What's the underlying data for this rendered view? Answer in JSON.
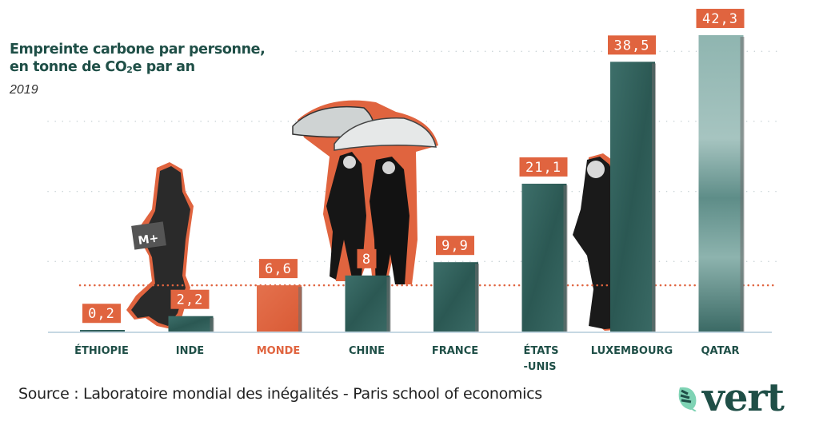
{
  "header": {
    "title_line1": "Empreinte carbone par personne,",
    "title_line2_pre": "en tonne de CO",
    "title_line2_sub": "2",
    "title_line2_post": "e par an",
    "year": "2019"
  },
  "chart_data": {
    "type": "bar",
    "title": "Empreinte carbone par personne, en tonne de CO2e par an",
    "subtitle": "2019",
    "xlabel": "",
    "ylabel": "",
    "ylim": [
      0,
      42.3
    ],
    "grid": true,
    "categories": [
      "ÉTHIOPIE",
      "INDE",
      "MONDE",
      "CHINE",
      "FRANCE",
      "ÉTATS-UNIS",
      "LUXEMBOURG",
      "QATAR"
    ],
    "category_lines": [
      [
        "ÉTHIOPIE"
      ],
      [
        "INDE"
      ],
      [
        "MONDE"
      ],
      [
        "CHINE"
      ],
      [
        "FRANCE"
      ],
      [
        "ÉTATS",
        "-UNIS"
      ],
      [
        "LUXEMBOURG"
      ],
      [
        "QATAR"
      ]
    ],
    "values": [
      0.2,
      2.2,
      6.6,
      8,
      9.9,
      21.1,
      38.5,
      42.3
    ],
    "value_labels": [
      "0,2",
      "2,2",
      "6,6",
      "8",
      "9,9",
      "21,1",
      "38,5",
      "42,3"
    ],
    "highlight": "MONDE",
    "reference_line": {
      "label": "MONDE",
      "value": 6.6
    },
    "gridlines": [
      10,
      20,
      30,
      40
    ]
  },
  "colors": {
    "bar": "#2f5e5a",
    "bar_light": "#7fa8a4",
    "highlight": "#e0643f",
    "label_text": "#1f4f47",
    "grid": "#c9d3d6",
    "baseline": "#c6d8e3"
  },
  "footer": {
    "source": "Source : Laboratoire mondial des inégalités - Paris school of economics",
    "logo": "vert",
    "logo_icon": "leaf-icon"
  }
}
